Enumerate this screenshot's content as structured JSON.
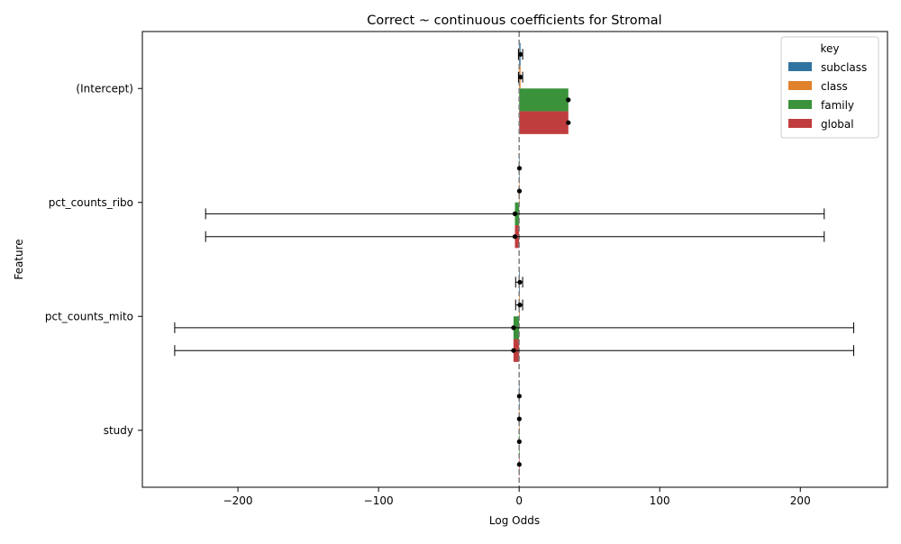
{
  "chart_data": {
    "type": "bar",
    "orientation": "horizontal",
    "title": "Correct ~ continuous coefficients for Stromal",
    "xlabel": "Log Odds",
    "ylabel": "Feature",
    "categories": [
      "(Intercept)",
      "pct_counts_ribo",
      "pct_counts_mito",
      "study"
    ],
    "xlim": [
      -268,
      262
    ],
    "xticks": [
      -200,
      -100,
      0,
      100,
      200
    ],
    "xtick_labels": [
      "−200",
      "−100",
      "0",
      "100",
      "200"
    ],
    "reference_line": 0,
    "legend": {
      "title": "key",
      "position": "top-right"
    },
    "series": [
      {
        "name": "subclass",
        "color": "#3274a1",
        "values": [
          1.0,
          0.2,
          0.5,
          0.1
        ],
        "error_low": [
          -0.5,
          null,
          -2.5,
          null
        ],
        "error_high": [
          2.5,
          null,
          2.5,
          null
        ]
      },
      {
        "name": "class",
        "color": "#e1812c",
        "values": [
          1.0,
          0.2,
          0.5,
          0.1
        ],
        "error_low": [
          -0.5,
          null,
          -2.5,
          null
        ],
        "error_high": [
          2.5,
          null,
          2.5,
          null
        ]
      },
      {
        "name": "family",
        "color": "#3a923a",
        "values": [
          35,
          -3,
          -4,
          0.1
        ],
        "error_low": [
          null,
          -223,
          -245,
          null
        ],
        "error_high": [
          null,
          217,
          238,
          null
        ]
      },
      {
        "name": "global",
        "color": "#c03d3e",
        "values": [
          35,
          -3,
          -4,
          0.1
        ],
        "error_low": [
          null,
          -223,
          -245,
          null
        ],
        "error_high": [
          null,
          217,
          238,
          null
        ]
      }
    ]
  }
}
